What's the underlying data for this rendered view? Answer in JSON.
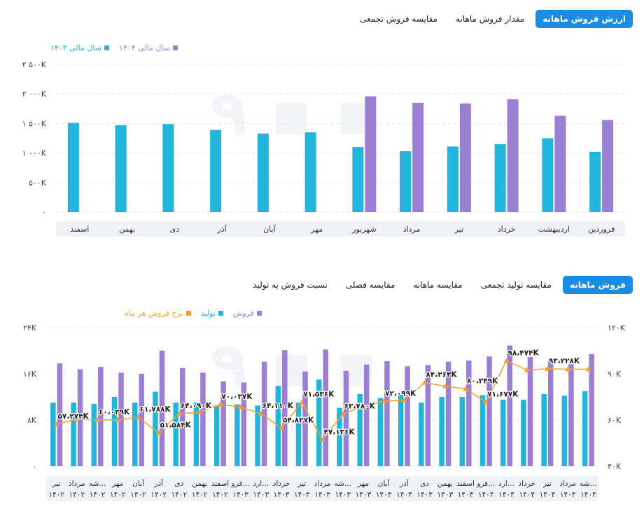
{
  "chart1": {
    "tabs": [
      {
        "label": "ارزش فروش ماهانه",
        "active": true
      },
      {
        "label": "مقدار فروش ماهانه",
        "active": false
      },
      {
        "label": "مقایسه فروش تجمعی",
        "active": false
      }
    ],
    "legend": [
      {
        "label": "سال مالی ۱۴۰۴",
        "color": "#9b7fd4"
      },
      {
        "label": "سال مالی ۱۴۰۳",
        "color": "#22b5dc"
      }
    ]
  },
  "chart2": {
    "tabs": [
      {
        "label": "فروش ماهانه",
        "active": true
      },
      {
        "label": "مقایسه تولید تجمعی",
        "active": false
      },
      {
        "label": "مقایسه ماهانه",
        "active": false
      },
      {
        "label": "مقایسه فصلی",
        "active": false
      },
      {
        "label": "نسبت فروش به تولید",
        "active": false
      }
    ],
    "legend": [
      {
        "label": "فروش",
        "color": "#9b7fd4"
      },
      {
        "label": "تولید",
        "color": "#22b5dc"
      },
      {
        "label": "نرخ فروش هر ماه",
        "color": "#f5a031"
      }
    ]
  },
  "chart_data": [
    {
      "type": "bar",
      "categories": [
        "فروردین",
        "اردیبهشت",
        "خرداد",
        "تیر",
        "مرداد",
        "شهریور",
        "مهر",
        "آبان",
        "آذر",
        "دی",
        "بهمن",
        "اسفند"
      ],
      "series": [
        {
          "name": "سال مالی ۱۴۰۳",
          "color": "#22b5dc",
          "values": [
            1020,
            1250,
            1150,
            1110,
            1030,
            1100,
            1350,
            1330,
            1390,
            1490,
            1470,
            1510
          ]
        },
        {
          "name": "سال مالی ۱۴۰۴",
          "color": "#9b7fd4",
          "values": [
            1560,
            1630,
            1910,
            1840,
            1850,
            1960,
            null,
            null,
            null,
            null,
            null,
            null
          ]
        }
      ],
      "yticks": [
        "۰",
        "۵۰۰K",
        "۱ ۰۰۰K",
        "۱ ۵۰۰K",
        "۲ ۰۰۰K",
        "۲ ۵۰۰K"
      ],
      "ylim": [
        0,
        2500
      ],
      "rtl": true
    },
    {
      "type": "bar+line",
      "categories": [
        [
          "تیر",
          "۱۴۰۲"
        ],
        [
          "مرداد",
          "۱۴۰۲"
        ],
        [
          "شه...",
          "۱۴۰۲"
        ],
        [
          "مهر",
          "۱۴۰۲"
        ],
        [
          "آبان",
          "۱۴۰۲"
        ],
        [
          "آذر",
          "۱۴۰۲"
        ],
        [
          "دی",
          "۱۴۰۲"
        ],
        [
          "بهمن",
          "۱۴۰۲"
        ],
        [
          "اسفند",
          "۱۴۰۲"
        ],
        [
          "فرو...",
          "۱۴۰۳"
        ],
        [
          "ارد...",
          "۱۴۰۳"
        ],
        [
          "خرداد",
          "۱۴۰۳"
        ],
        [
          "تیر",
          "۱۴۰۳"
        ],
        [
          "مرداد",
          "۱۴۰۳"
        ],
        [
          "شه...",
          "۱۴۰۳"
        ],
        [
          "مهر",
          "۱۴۰۳"
        ],
        [
          "آبان",
          "۱۴۰۳"
        ],
        [
          "آذر",
          "۱۴۰۳"
        ],
        [
          "دی",
          "۱۴۰۳"
        ],
        [
          "بهمن",
          "۱۴۰۳"
        ],
        [
          "اسفند",
          "۱۴۰۳"
        ],
        [
          "فرو...",
          "۱۴۰۴"
        ],
        [
          "ارد...",
          "۱۴۰۴"
        ],
        [
          "خرداد",
          "۱۴۰۴"
        ],
        [
          "تیر",
          "۱۴۰۴"
        ],
        [
          "مرداد",
          "۱۴۰۴"
        ],
        [
          "شه...",
          "۱۴۰۴"
        ]
      ],
      "series": [
        {
          "name": "تولید",
          "color": "#22b5dc",
          "axis": "left",
          "values": [
            11000,
            11000,
            10800,
            12000,
            11000,
            12900,
            11000,
            11000,
            10500,
            10700,
            10500,
            13900,
            11000,
            15000,
            10100,
            12500,
            11800,
            12400,
            11000,
            12000,
            12000,
            12300,
            11500,
            11500,
            12500,
            12200,
            13000
          ]
        },
        {
          "name": "فروش",
          "color": "#9b7fd4",
          "axis": "left",
          "values": [
            17800,
            16800,
            17200,
            16200,
            16000,
            20000,
            17000,
            16200,
            14700,
            14500,
            18100,
            20100,
            16400,
            20200,
            16500,
            17600,
            18200,
            17300,
            17500,
            18100,
            18300,
            19000,
            20900,
            18900,
            18300,
            18000,
            19400
          ]
        },
        {
          "name": "نرخ فروش هر ماه",
          "color": "#f5a031",
          "axis": "right",
          "values": [
            57274,
            60500,
            60039,
            60039,
            61788,
            51584,
            64090,
            65000,
            70037,
            68500,
            64110,
            54827,
            71536,
            47136,
            63780,
            69000,
            72099,
            73000,
            84263,
            82000,
            80249,
            71677,
            98474,
            92500,
            93228,
            93000,
            93000
          ]
        }
      ],
      "point_labels": [
        {
          "index": 0,
          "text": "۵۷،۲۷۴K"
        },
        {
          "index": 2,
          "text": "۶۰،۰۳۹K"
        },
        {
          "index": 4,
          "text": "۶۱،۷۸۸K"
        },
        {
          "index": 5,
          "text": "۵۱،۵۸۴K"
        },
        {
          "index": 6,
          "text": "۶۴،۰۹۰K"
        },
        {
          "index": 8,
          "text": "۷۰،۰۳۷K"
        },
        {
          "index": 10,
          "text": "۶۴،۱۱۰K"
        },
        {
          "index": 11,
          "text": "۵۴،۸۲۷K"
        },
        {
          "index": 12,
          "text": "۷۱،۵۳۶K"
        },
        {
          "index": 13,
          "text": "۴۷،۱۳۶K"
        },
        {
          "index": 14,
          "text": "۶۳،۷۸۰K"
        },
        {
          "index": 16,
          "text": "۷۲،۰۹۹K"
        },
        {
          "index": 18,
          "text": "۸۴،۲۶۳K"
        },
        {
          "index": 20,
          "text": "۸۰،۲۴۹K"
        },
        {
          "index": 21,
          "text": "۷۱،۶۷۷K"
        },
        {
          "index": 22,
          "text": "۹۸،۴۷۴K"
        },
        {
          "index": 24,
          "text": "۹۳،۲۲۸K"
        }
      ],
      "yticks_left": [
        "۰",
        "۸K",
        "۱۶K",
        "۲۴K"
      ],
      "ylim_left": [
        0,
        24000
      ],
      "yticks_right": [
        "۳۰K",
        "۶۰K",
        "۹۰K",
        "۱۲۰K"
      ],
      "ylim_right": [
        30000,
        120000
      ]
    }
  ]
}
